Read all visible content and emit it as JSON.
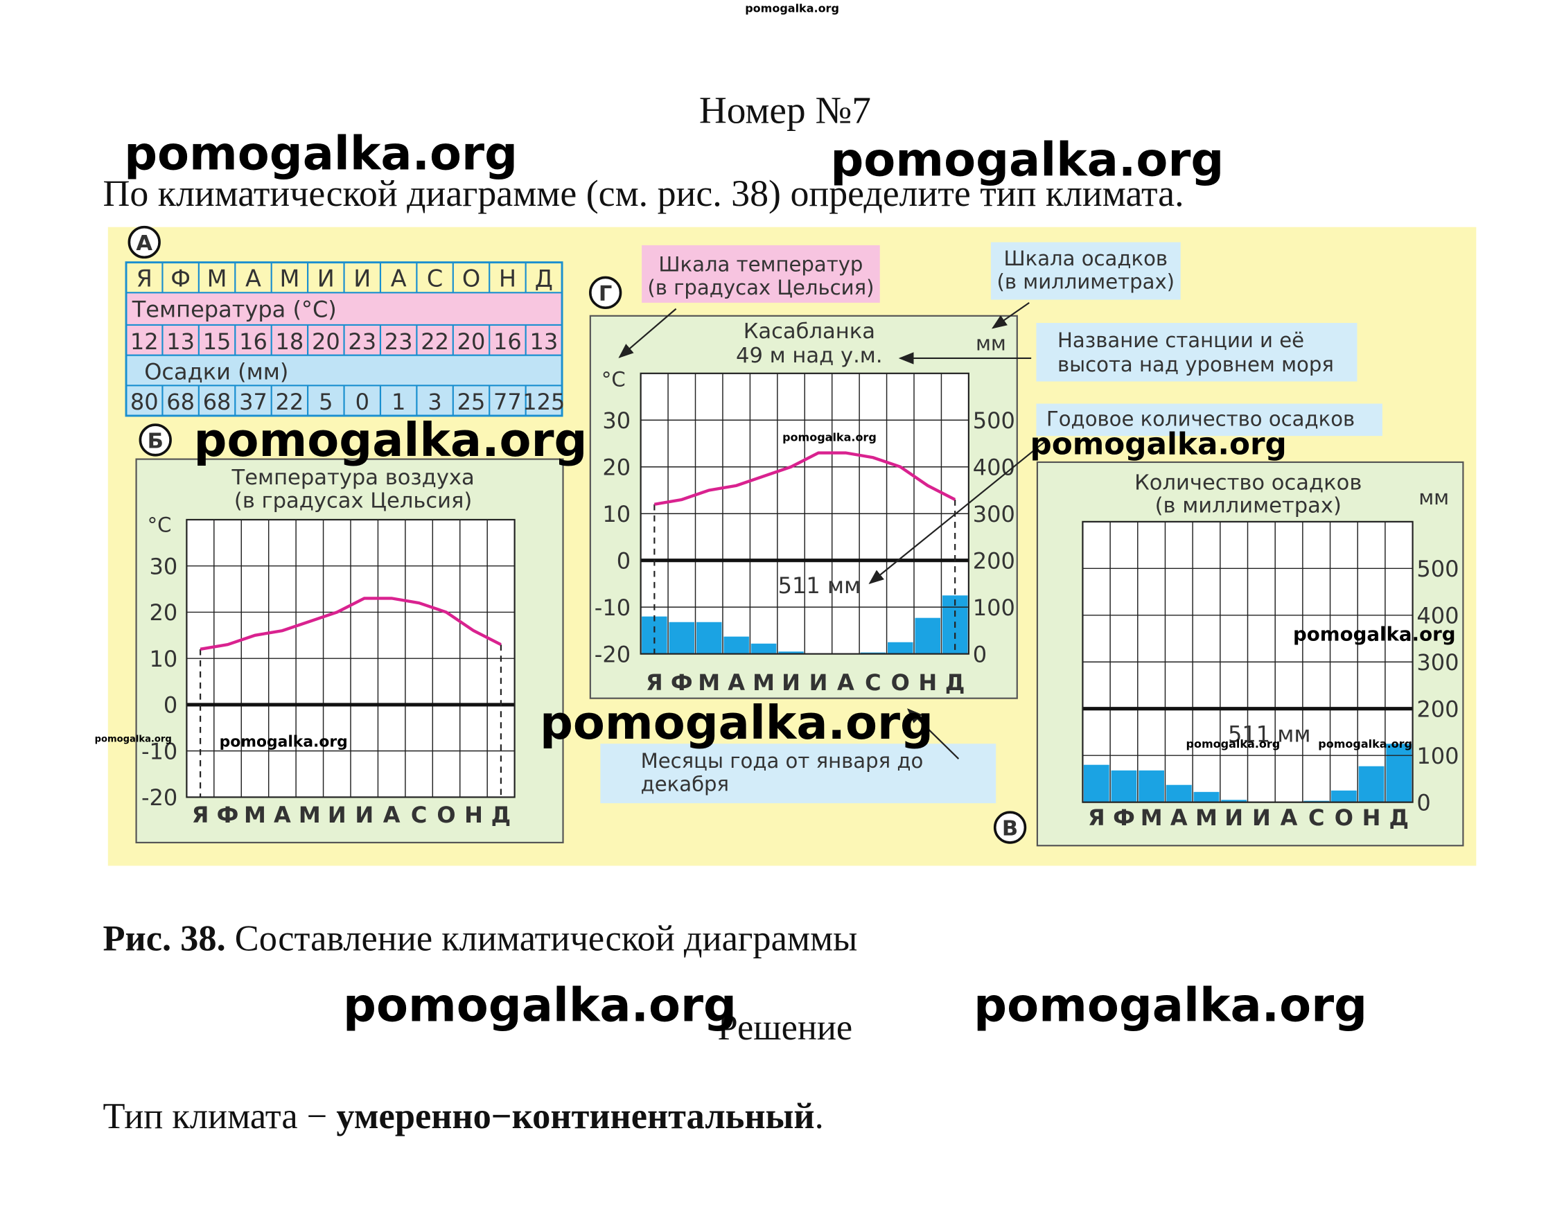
{
  "watermarks": [
    "pomogalka.org",
    "pomogalka.org",
    "pomogalka.org",
    "pomogalka.org",
    "pomogalka.org",
    "pomogalka.org",
    "pomogalka.org",
    "pomogalka.org",
    "pomogalka.org",
    "pomogalka.org",
    "pomogalka.org",
    "pomogalka.org",
    "pomogalka.org",
    "pomogalka.org"
  ],
  "heading": "Номер №7",
  "question": "По климатической диаграмме (см. рис. 38) определите тип климата.",
  "figure": {
    "panel_labels": [
      "А",
      "Б",
      "Г",
      "В"
    ],
    "table": {
      "months": [
        "Я",
        "Ф",
        "М",
        "А",
        "М",
        "И",
        "И",
        "А",
        "С",
        "О",
        "Н",
        "Д"
      ],
      "temperature_label": "Температура (°С)",
      "temperature": [
        12,
        13,
        15,
        16,
        18,
        20,
        23,
        23,
        22,
        20,
        16,
        13
      ],
      "precipitation_label": "Осадки (мм)",
      "precipitation": [
        80,
        68,
        68,
        37,
        22,
        5,
        0,
        1,
        3,
        25,
        77,
        125
      ]
    },
    "callouts": [
      [
        "Шкала температур",
        "(в градусах Цельсия)"
      ],
      [
        "Шкала осадков",
        "(в миллиметрах)"
      ],
      [
        "Название станции и её",
        "высота  над уровнем моря"
      ],
      [
        "Годовое  количество  осадков"
      ],
      [
        "Месяцы года от января до",
        "декабря"
      ]
    ]
  },
  "chart_data": [
    {
      "type": "line",
      "title": [
        "Температура воздуха",
        "(в градусах Цельсия)"
      ],
      "y_unit": "°С",
      "categories": [
        "Я",
        "Ф",
        "М",
        "А",
        "М",
        "И",
        "И",
        "А",
        "С",
        "О",
        "Н",
        "Д"
      ],
      "ylim": [
        -20,
        40
      ],
      "yticks": [
        30,
        20,
        10,
        0,
        -10,
        -20
      ],
      "highlight_tick": 0,
      "series": [
        {
          "type": "line",
          "color": "#d9228f",
          "values": [
            12,
            13,
            15,
            16,
            18,
            20,
            23,
            23,
            22,
            20,
            16,
            13
          ]
        }
      ]
    },
    {
      "type": "combo",
      "station": [
        "Касабланка",
        "49 м над у.м."
      ],
      "y_unit": "°С",
      "y2_unit": "мм",
      "annotation": "511 мм",
      "categories": [
        "Я",
        "Ф",
        "М",
        "А",
        "М",
        "И",
        "И",
        "А",
        "С",
        "О",
        "Н",
        "Д"
      ],
      "ylim": [
        -20,
        40
      ],
      "yticks": [
        30,
        20,
        10,
        0,
        -10,
        -20
      ],
      "highlight_tick": 0,
      "y2lim": [
        0,
        600
      ],
      "y2ticks": [
        500,
        400,
        300,
        200,
        100,
        0
      ],
      "series": [
        {
          "type": "line",
          "color": "#d9228f",
          "values": [
            12,
            13,
            15,
            16,
            18,
            20,
            23,
            23,
            22,
            20,
            16,
            13
          ]
        },
        {
          "type": "bar",
          "axis": "y2",
          "color": "#1ba3e3",
          "values": [
            80,
            68,
            68,
            37,
            22,
            5,
            0,
            1,
            3,
            25,
            77,
            125
          ]
        }
      ]
    },
    {
      "type": "bar",
      "title": [
        "Количество  осадков",
        "(в миллиметрах)"
      ],
      "y_unit": "мм",
      "annotation": "511 мм",
      "categories": [
        "Я",
        "Ф",
        "М",
        "А",
        "М",
        "И",
        "И",
        "А",
        "С",
        "О",
        "Н",
        "Д"
      ],
      "ylim": [
        0,
        600
      ],
      "yticks": [
        500,
        400,
        300,
        200,
        100,
        0
      ],
      "highlight_tick": 200,
      "series": [
        {
          "type": "bar",
          "color": "#1ba3e3",
          "values": [
            80,
            68,
            68,
            37,
            22,
            5,
            0,
            1,
            3,
            25,
            77,
            125
          ]
        }
      ]
    }
  ],
  "caption": {
    "label": "Рис. 38.",
    "text": " Составление климатической диаграммы"
  },
  "solution_label": "Решение",
  "answer": {
    "prefix": "Тип климата − ",
    "term": "умеренно−континентальный",
    "suffix": "."
  }
}
